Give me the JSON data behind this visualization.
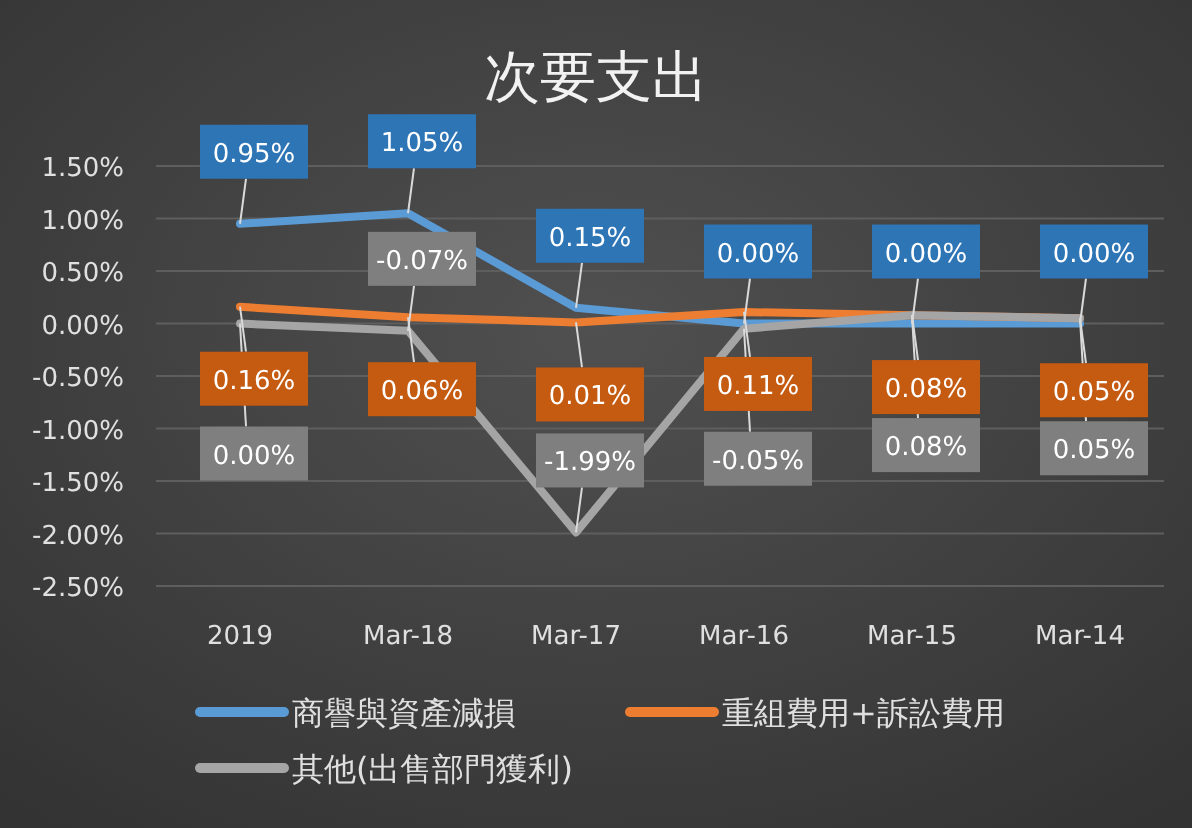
{
  "chart_data": {
    "type": "line",
    "title": "次要支出",
    "categories": [
      "2019",
      "Mar-18",
      "Mar-17",
      "Mar-16",
      "Mar-15",
      "Mar-14"
    ],
    "series": [
      {
        "name": "商譽與資產減損",
        "color": "#5b9bd5",
        "values": [
          0.95,
          1.05,
          0.15,
          0.0,
          0.0,
          0.0
        ],
        "value_labels": [
          "0.95%",
          "1.05%",
          "0.15%",
          "0.00%",
          "0.00%",
          "0.00%"
        ]
      },
      {
        "name": "重組費用+訴訟費用",
        "color": "#ed7d31",
        "values": [
          0.16,
          0.06,
          0.01,
          0.11,
          0.08,
          0.05
        ],
        "value_labels": [
          "0.16%",
          "0.06%",
          "0.01%",
          "0.11%",
          "0.08%",
          "0.05%"
        ]
      },
      {
        "name": "其他(出售部門獲利)",
        "color": "#a5a5a5",
        "values": [
          0.0,
          -0.07,
          -1.99,
          -0.05,
          0.08,
          0.05
        ],
        "value_labels": [
          "0.00%",
          "-0.07%",
          "-1.99%",
          "-0.05%",
          "0.08%",
          "0.05%"
        ]
      }
    ],
    "ylim": [
      -2.5,
      1.5
    ],
    "yticks": [
      {
        "value": 1.5,
        "label": "1.50%"
      },
      {
        "value": 1.0,
        "label": "1.00%"
      },
      {
        "value": 0.5,
        "label": "0.50%"
      },
      {
        "value": 0.0,
        "label": "0.00%"
      },
      {
        "value": -0.5,
        "label": "-0.50%"
      },
      {
        "value": -1.0,
        "label": "-1.00%"
      },
      {
        "value": -1.5,
        "label": "-1.50%"
      },
      {
        "value": -2.0,
        "label": "-2.00%"
      },
      {
        "value": -2.5,
        "label": "-2.50%"
      }
    ],
    "grid": "y",
    "legend": "bottom",
    "marker": "none",
    "line_style": "solid"
  }
}
